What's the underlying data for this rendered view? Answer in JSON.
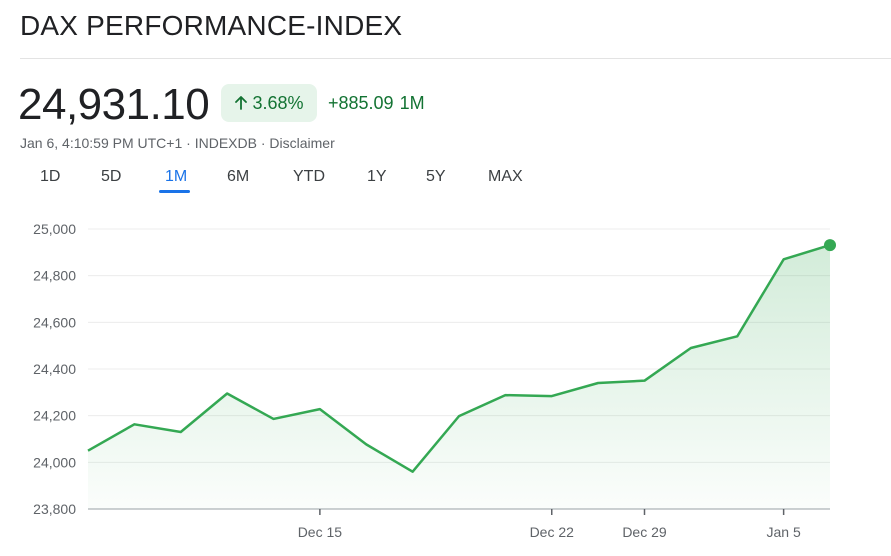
{
  "header": {
    "title": "DAX PERFORMANCE-INDEX"
  },
  "quote": {
    "price": "24,931.10",
    "percent_change": "3.68%",
    "abs_change": "+885.09",
    "period": "1M",
    "timestamp": "Jan 6, 4:10:59 PM UTC+1",
    "separator": " · ",
    "source": "INDEXDB",
    "disclaimer": "Disclaimer"
  },
  "colors": {
    "up": "#137333",
    "line": "#34a853",
    "accent": "#1a73e8"
  },
  "tabs": [
    {
      "label": "1D",
      "active": false
    },
    {
      "label": "5D",
      "active": false
    },
    {
      "label": "1M",
      "active": true
    },
    {
      "label": "6M",
      "active": false
    },
    {
      "label": "YTD",
      "active": false
    },
    {
      "label": "1Y",
      "active": false
    },
    {
      "label": "5Y",
      "active": false
    },
    {
      "label": "MAX",
      "active": false
    }
  ],
  "chart_data": {
    "type": "area",
    "title": "",
    "xlabel": "",
    "ylabel": "",
    "ylim": [
      23800,
      25000
    ],
    "yticks": [
      "25,000",
      "24,800",
      "24,600",
      "24,400",
      "24,200",
      "24,000",
      "23,800"
    ],
    "ytick_values": [
      25000,
      24800,
      24600,
      24400,
      24200,
      24000,
      23800
    ],
    "xticks": [
      {
        "label": "Dec 15",
        "index": 5
      },
      {
        "label": "Dec 22",
        "index": 10
      },
      {
        "label": "Dec 29",
        "index": 12
      },
      {
        "label": "Jan 5",
        "index": 15
      }
    ],
    "grid": true,
    "values": [
      24050,
      24163,
      24130,
      24295,
      24186,
      24228,
      24077,
      23960,
      24198,
      24288,
      24284,
      24340,
      24350,
      24490,
      24540,
      24870,
      24931.1
    ]
  }
}
